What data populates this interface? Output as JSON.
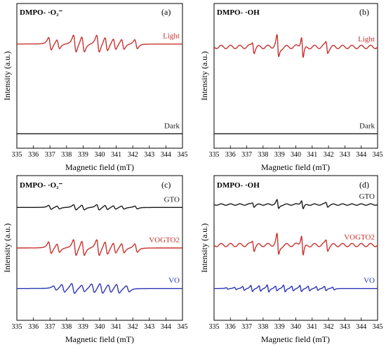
{
  "colors": {
    "black": "#1a1a1a",
    "red": "#c8332f",
    "blue": "#2d35b5"
  },
  "chart_data": [
    {
      "type": "line",
      "panel_label": "(a)",
      "title": "DMPO- ·O₂⁻",
      "xlabel": "Magnetic field (mT)",
      "ylabel": "Intensity (a.u.)",
      "xlim": [
        335,
        345
      ],
      "xticks": [
        "335",
        "336",
        "337",
        "338",
        "339",
        "340",
        "341",
        "342",
        "343",
        "344",
        "345"
      ],
      "series": [
        {
          "name": "Light",
          "color": "red",
          "baseline": 0.72,
          "shape": "superoxide",
          "amplitude": 0.16
        },
        {
          "name": "Dark",
          "color": "black",
          "baseline": 0.1,
          "shape": "flat",
          "amplitude": 0.0
        }
      ]
    },
    {
      "type": "line",
      "panel_label": "(b)",
      "title": "DMPO- ·OH",
      "xlabel": "Magnetic field (mT)",
      "ylabel": "Intensity (a.u.)",
      "xlim": [
        335,
        345
      ],
      "xticks": [
        "335",
        "336",
        "337",
        "338",
        "339",
        "340",
        "341",
        "342",
        "343",
        "344",
        "345"
      ],
      "series": [
        {
          "name": "Light",
          "color": "red",
          "baseline": 0.7,
          "shape": "hydroxyl",
          "amplitude": 0.2
        },
        {
          "name": "Dark",
          "color": "black",
          "baseline": 0.1,
          "shape": "flat",
          "amplitude": 0.0
        }
      ]
    },
    {
      "type": "line",
      "panel_label": "(c)",
      "title": "DMPO- ·O₂⁻",
      "xlabel": "Magnetic field (mT)",
      "ylabel": "Intensity (a.u.)",
      "xlim": [
        335,
        345
      ],
      "xticks": [
        "335",
        "336",
        "337",
        "338",
        "339",
        "340",
        "341",
        "342",
        "343",
        "344",
        "345"
      ],
      "series": [
        {
          "name": "GTO",
          "color": "black",
          "baseline": 0.78,
          "shape": "superoxide",
          "amplitude": 0.05
        },
        {
          "name": "VOGTO2",
          "color": "red",
          "baseline": 0.5,
          "shape": "superoxide",
          "amplitude": 0.15
        },
        {
          "name": "VO",
          "color": "blue",
          "baseline": 0.22,
          "shape": "vo",
          "amplitude": 0.1
        }
      ]
    },
    {
      "type": "line",
      "panel_label": "(d)",
      "title": "DMPO- ·OH",
      "xlabel": "Magnetic field (mT)",
      "ylabel": "Intensity (a.u.)",
      "xlim": [
        335,
        345
      ],
      "xticks": [
        "335",
        "336",
        "337",
        "338",
        "339",
        "340",
        "341",
        "342",
        "343",
        "344",
        "345"
      ],
      "series": [
        {
          "name": "GTO",
          "color": "black",
          "baseline": 0.8,
          "shape": "hydroxyl",
          "amplitude": 0.08
        },
        {
          "name": "VOGTO2",
          "color": "red",
          "baseline": 0.52,
          "shape": "hydroxyl",
          "amplitude": 0.19
        },
        {
          "name": "VO",
          "color": "blue",
          "baseline": 0.22,
          "shape": "voh",
          "amplitude": 0.07
        }
      ]
    }
  ]
}
